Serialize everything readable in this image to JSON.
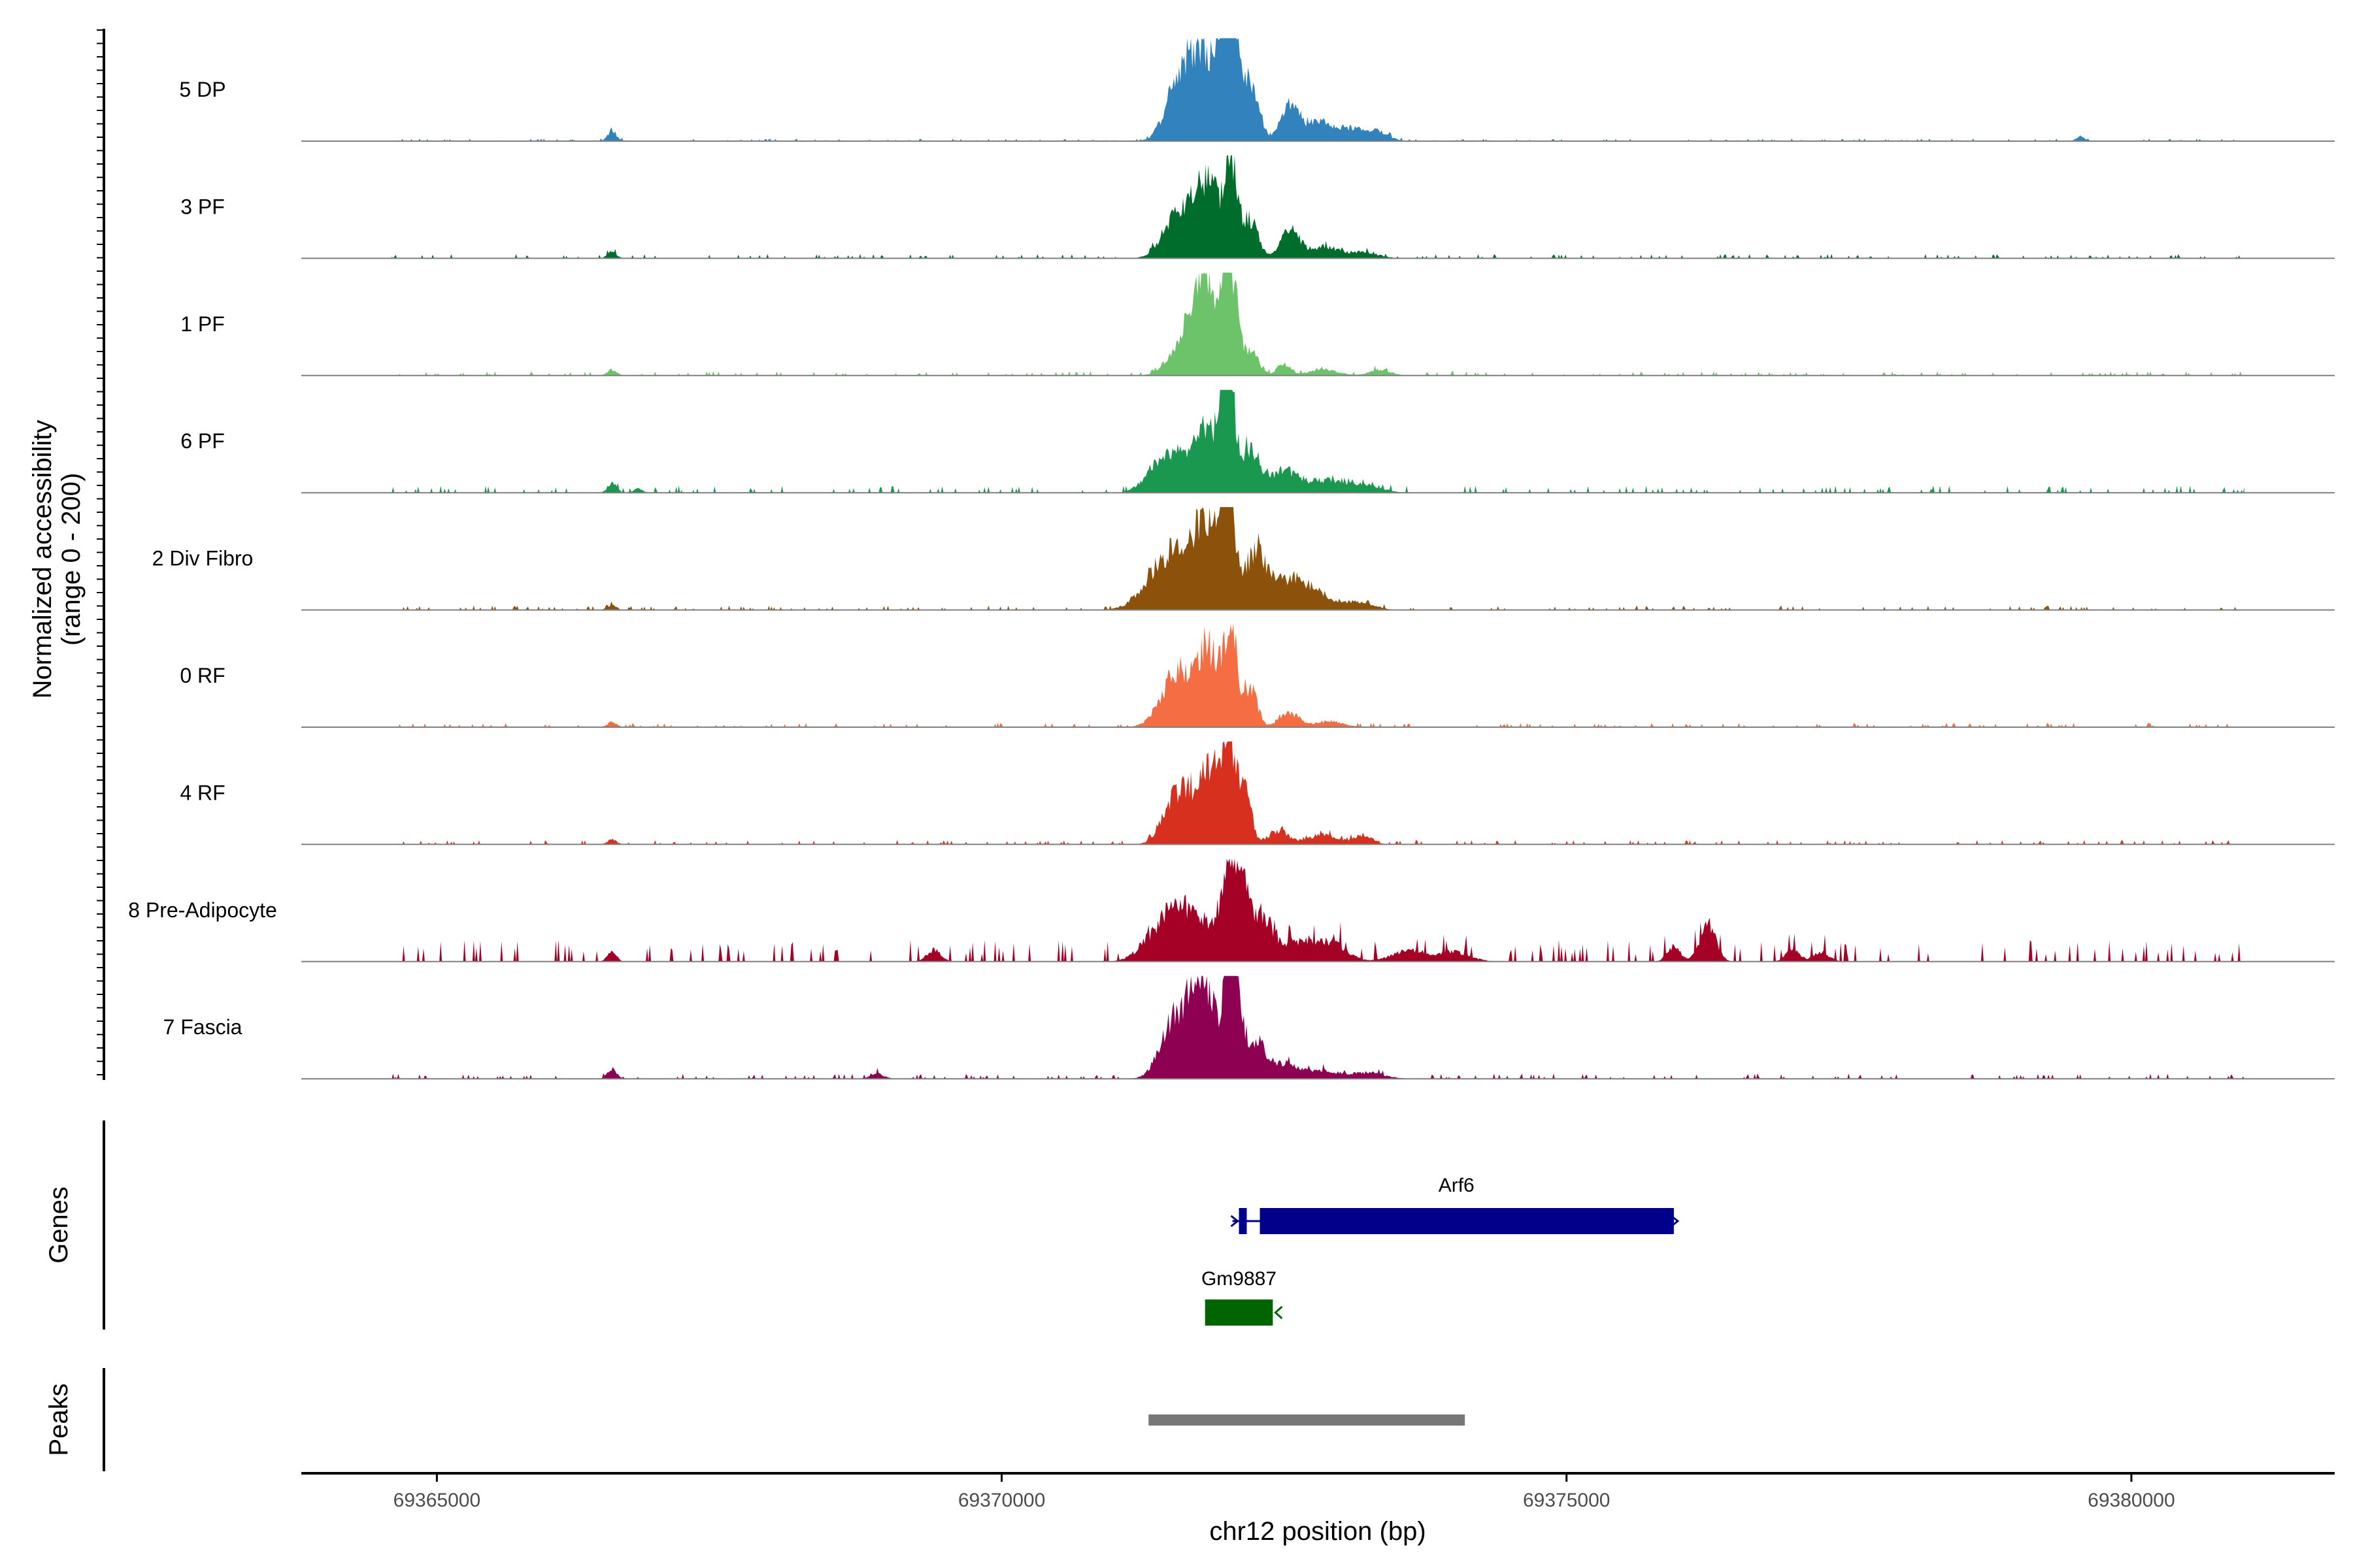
{
  "chart_data": {
    "type": "area",
    "title": "",
    "region": {
      "chromosome": "chr12",
      "start": 69363800,
      "end": 69381800
    },
    "ylabel_line1": "Normalized accessibility",
    "ylabel_line2": "(range 0 - 200)",
    "ylim": [
      0,
      200
    ],
    "xlabel": "chr12 position (bp)",
    "x_ticks": [
      69365000,
      69370000,
      69375000,
      69380000
    ],
    "x_tick_labels": [
      "69365000",
      "69370000",
      "69375000",
      "69380000"
    ],
    "genes_label": "Genes",
    "peaks_label": "Peaks",
    "tracks": [
      {
        "name": "5 DP",
        "color": "#3182bd",
        "profile": "dp"
      },
      {
        "name": "3 PF",
        "color": "#006d2c",
        "profile": "pf3"
      },
      {
        "name": "1 PF",
        "color": "#6cc36a",
        "profile": "pf1"
      },
      {
        "name": "6 PF",
        "color": "#1b9850",
        "profile": "pf6"
      },
      {
        "name": "2 Div Fibro",
        "color": "#8c510a",
        "profile": "div"
      },
      {
        "name": "0 RF",
        "color": "#f46d43",
        "profile": "rf0"
      },
      {
        "name": "4 RF",
        "color": "#d7301f",
        "profile": "rf4"
      },
      {
        "name": "8 Pre-Adipocyte",
        "color": "#a50026",
        "profile": "pre"
      },
      {
        "name": "7 Fascia",
        "color": "#8e0152",
        "profile": "fas"
      }
    ],
    "genes": [
      {
        "name": "Arf6",
        "start": 69372100,
        "end": 69375950,
        "strand": "+",
        "color": "#00008b"
      },
      {
        "name": "Gm9887",
        "start": 69371800,
        "end": 69372400,
        "strand": "-",
        "color": "#006400"
      }
    ],
    "peaks": [
      {
        "start": 69371300,
        "end": 69374100,
        "color": "#777777"
      }
    ]
  }
}
